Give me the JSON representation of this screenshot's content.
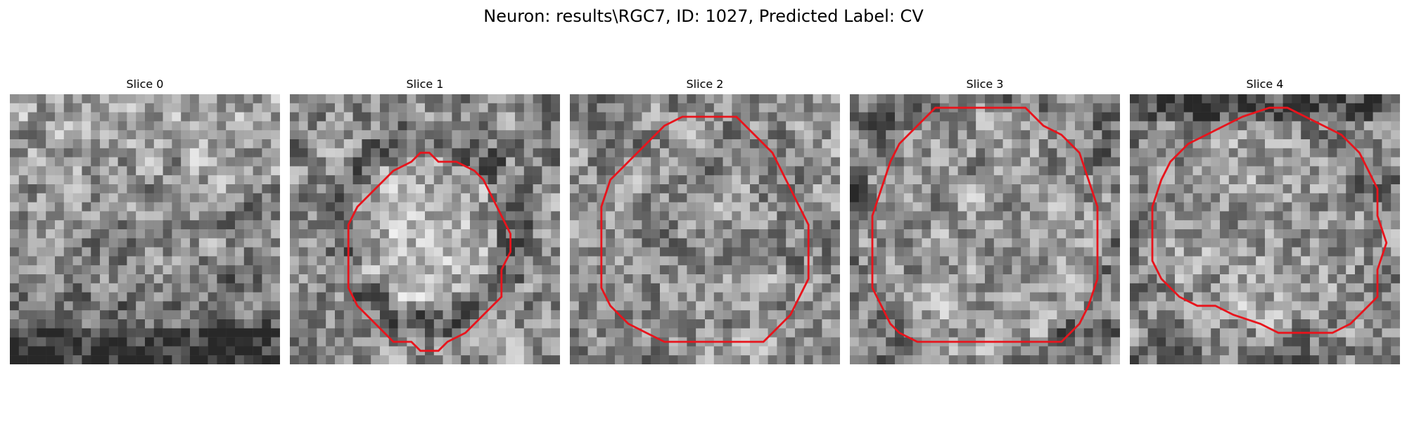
{
  "figure": {
    "suptitle": "Neuron: results\\RGC7, ID: 1027, Predicted Label: CV",
    "contour_color": "#e8141c",
    "colormap": "gray"
  },
  "chart_data": [
    {
      "type": "heatmap",
      "title": "Slice 0",
      "grid_size": [
        30,
        30
      ],
      "seed": 11,
      "brightness_profile": "bright-center-upper, dark bottom edge",
      "contour": []
    },
    {
      "type": "heatmap",
      "title": "Slice 1",
      "grid_size": [
        30,
        30
      ],
      "seed": 23,
      "brightness_profile": "bright soma center, dark ring",
      "contour": [
        [
          15.5,
          6.5
        ],
        [
          16.5,
          7.5
        ],
        [
          18.5,
          7.5
        ],
        [
          20.5,
          8.5
        ],
        [
          21.5,
          9.5
        ],
        [
          22.5,
          11.5
        ],
        [
          23.5,
          13.5
        ],
        [
          24.5,
          15.5
        ],
        [
          24.5,
          17.5
        ],
        [
          23.5,
          19.5
        ],
        [
          23.5,
          22.5
        ],
        [
          21.5,
          24.5
        ],
        [
          19.5,
          26.5
        ],
        [
          17.5,
          27.5
        ],
        [
          16.5,
          28.5
        ],
        [
          14.5,
          28.5
        ],
        [
          13.5,
          27.5
        ],
        [
          11.5,
          27.5
        ],
        [
          9.5,
          25.5
        ],
        [
          7.5,
          23.5
        ],
        [
          6.5,
          21.5
        ],
        [
          6.5,
          17.5
        ],
        [
          6.5,
          14.5
        ],
        [
          7.5,
          12.5
        ],
        [
          9.5,
          10.5
        ],
        [
          11.5,
          8.5
        ],
        [
          13.5,
          7.5
        ],
        [
          14.5,
          6.5
        ]
      ]
    },
    {
      "type": "heatmap",
      "title": "Slice 2",
      "grid_size": [
        30,
        30
      ],
      "seed": 37,
      "brightness_profile": "mottled, dark patches",
      "contour": [
        [
          14.5,
          2.5
        ],
        [
          18.5,
          2.5
        ],
        [
          20.5,
          4.5
        ],
        [
          22.5,
          6.5
        ],
        [
          23.5,
          8.5
        ],
        [
          24.5,
          10.5
        ],
        [
          25.5,
          12.5
        ],
        [
          26.5,
          14.5
        ],
        [
          26.5,
          17.5
        ],
        [
          26.5,
          20.5
        ],
        [
          25.5,
          22.5
        ],
        [
          24.5,
          24.5
        ],
        [
          22.5,
          26.5
        ],
        [
          21.5,
          27.5
        ],
        [
          19.5,
          27.5
        ],
        [
          16.5,
          27.5
        ],
        [
          13.5,
          27.5
        ],
        [
          10.5,
          27.5
        ],
        [
          8.5,
          26.5
        ],
        [
          6.5,
          25.5
        ],
        [
          4.5,
          23.5
        ],
        [
          3.5,
          21.5
        ],
        [
          3.5,
          18.5
        ],
        [
          3.5,
          15.5
        ],
        [
          3.5,
          12.5
        ],
        [
          4.5,
          9.5
        ],
        [
          6.5,
          7.5
        ],
        [
          8.5,
          5.5
        ],
        [
          10.5,
          3.5
        ],
        [
          12.5,
          2.5
        ]
      ]
    },
    {
      "type": "heatmap",
      "title": "Slice 3",
      "grid_size": [
        30,
        30
      ],
      "seed": 51,
      "brightness_profile": "large soma, dark rim",
      "contour": [
        [
          9.5,
          1.5
        ],
        [
          14.5,
          1.5
        ],
        [
          19.5,
          1.5
        ],
        [
          21.5,
          3.5
        ],
        [
          23.5,
          4.5
        ],
        [
          25.5,
          6.5
        ],
        [
          26.5,
          9.5
        ],
        [
          27.5,
          12.5
        ],
        [
          27.5,
          16.5
        ],
        [
          27.5,
          20.5
        ],
        [
          26.5,
          23.5
        ],
        [
          25.5,
          25.5
        ],
        [
          23.5,
          27.5
        ],
        [
          21.5,
          27.5
        ],
        [
          17.5,
          27.5
        ],
        [
          13.5,
          27.5
        ],
        [
          9.5,
          27.5
        ],
        [
          7.5,
          27.5
        ],
        [
          5.5,
          26.5
        ],
        [
          4.5,
          25.5
        ],
        [
          3.5,
          23.5
        ],
        [
          2.5,
          21.5
        ],
        [
          2.5,
          17.5
        ],
        [
          2.5,
          13.5
        ],
        [
          3.5,
          10.5
        ],
        [
          4.5,
          7.5
        ],
        [
          5.5,
          5.5
        ],
        [
          7.5,
          3.5
        ]
      ]
    },
    {
      "type": "heatmap",
      "title": "Slice 4",
      "grid_size": [
        30,
        30
      ],
      "seed": 67,
      "brightness_profile": "soma with dark upper band",
      "contour": [
        [
          12.5,
          2.5
        ],
        [
          15.5,
          1.5
        ],
        [
          17.5,
          1.5
        ],
        [
          19.5,
          2.5
        ],
        [
          21.5,
          3.5
        ],
        [
          23.5,
          4.5
        ],
        [
          25.5,
          6.5
        ],
        [
          26.5,
          8.5
        ],
        [
          27.5,
          10.5
        ],
        [
          27.5,
          13.5
        ],
        [
          28.5,
          16.5
        ],
        [
          27.5,
          19.5
        ],
        [
          27.5,
          22.5
        ],
        [
          25.5,
          24.5
        ],
        [
          24.5,
          25.5
        ],
        [
          22.5,
          26.5
        ],
        [
          19.5,
          26.5
        ],
        [
          16.5,
          26.5
        ],
        [
          14.5,
          25.5
        ],
        [
          11.5,
          24.5
        ],
        [
          9.5,
          23.5
        ],
        [
          7.5,
          23.5
        ],
        [
          5.5,
          22.5
        ],
        [
          3.5,
          20.5
        ],
        [
          2.5,
          18.5
        ],
        [
          2.5,
          15.5
        ],
        [
          2.5,
          12.5
        ],
        [
          3.5,
          9.5
        ],
        [
          4.5,
          7.5
        ],
        [
          6.5,
          5.5
        ],
        [
          8.5,
          4.5
        ],
        [
          10.5,
          3.5
        ]
      ]
    }
  ]
}
